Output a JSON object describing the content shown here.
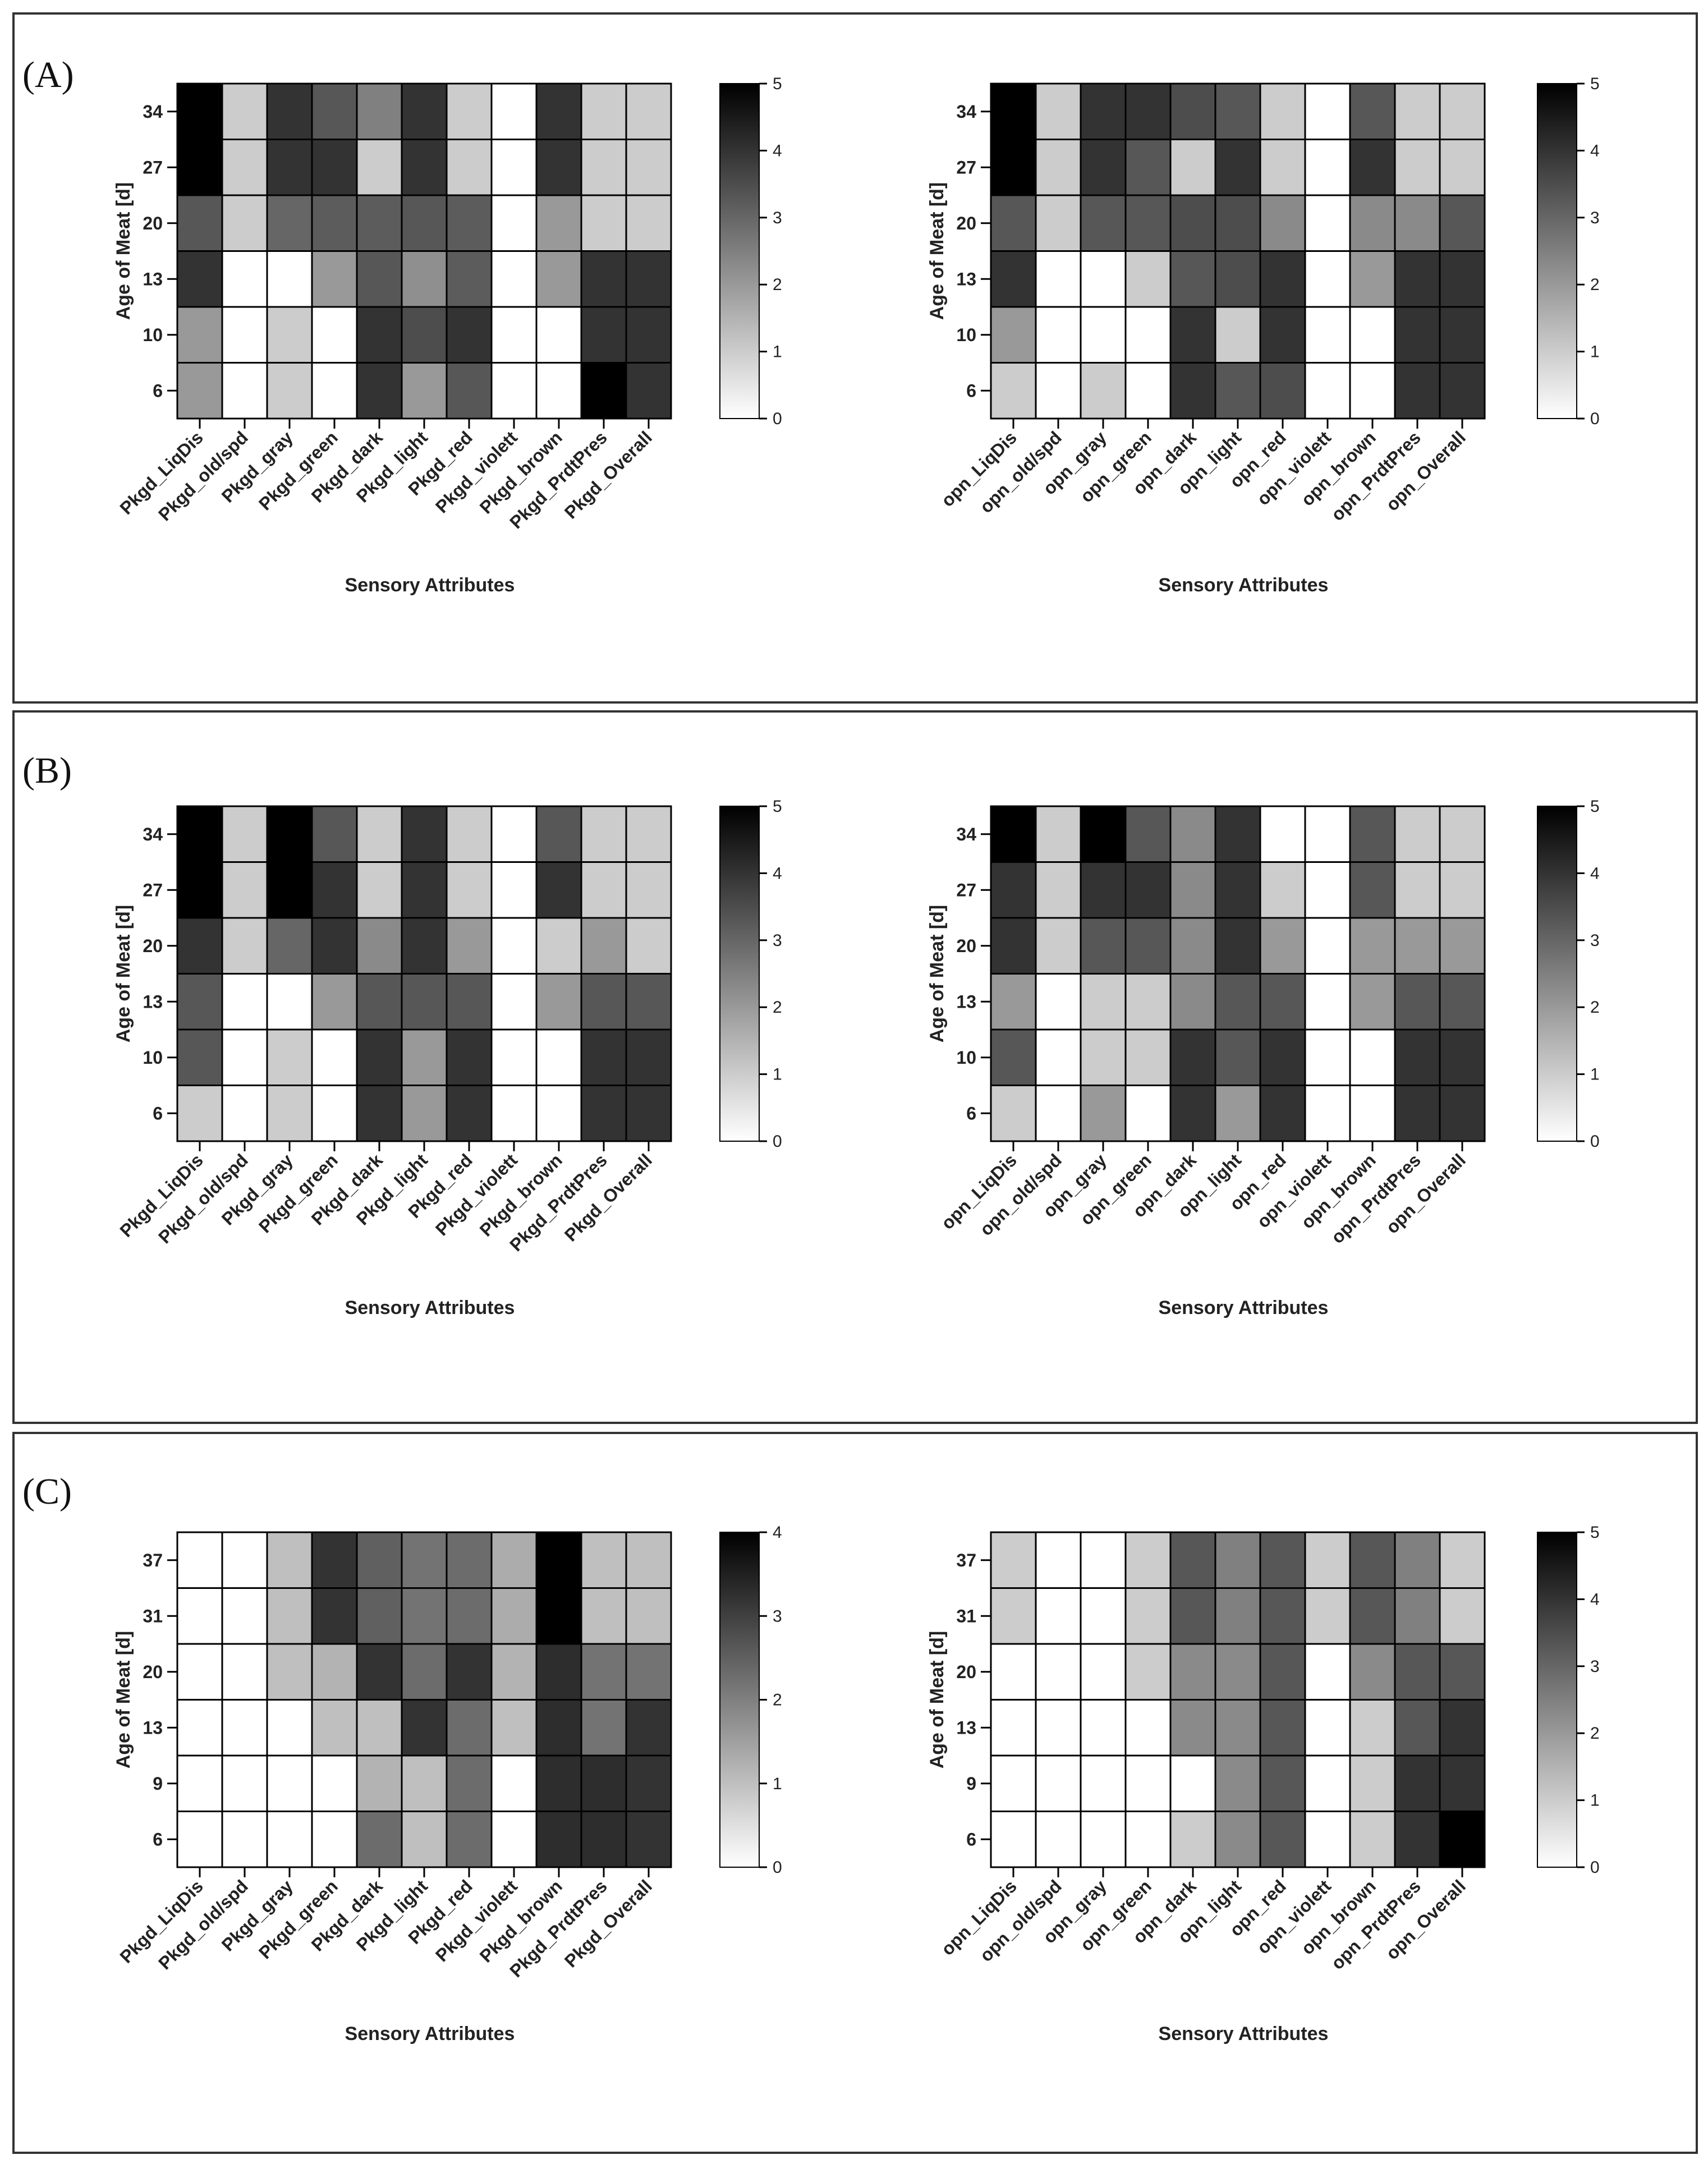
{
  "panels": [
    {
      "letter": "(A)"
    },
    {
      "letter": "(B)"
    },
    {
      "letter": "(C)"
    }
  ],
  "chart_data": [
    {
      "panel": "(A)",
      "type": "heatmap",
      "xlabel": "Sensory Attributes",
      "ylabel": "Age of Meat [d]",
      "x": [
        "Pkgd_LiqDis",
        "Pkgd_old/spd",
        "Pkgd_gray",
        "Pkgd_green",
        "Pkgd_dark",
        "Pkgd_light",
        "Pkgd_red",
        "Pkgd_violett",
        "Pkgd_brown",
        "Pkgd_PrdtPres",
        "Pkgd_Overall"
      ],
      "y": [
        "34",
        "27",
        "20",
        "13",
        "10",
        "6"
      ],
      "values": [
        [
          5,
          1,
          4,
          3.3,
          2.5,
          4,
          1,
          0,
          4,
          1,
          1
        ],
        [
          5,
          1,
          4,
          4,
          1,
          4,
          1,
          0,
          4,
          1,
          1
        ],
        [
          3.3,
          1,
          3,
          3.2,
          3.2,
          3.3,
          3.2,
          0,
          2,
          1,
          1
        ],
        [
          4,
          0,
          0,
          2,
          3.3,
          2.2,
          3.2,
          0,
          2,
          4,
          4
        ],
        [
          2,
          0,
          1,
          0,
          4,
          3.5,
          4,
          0,
          0,
          4,
          4
        ],
        [
          2,
          0,
          1,
          0,
          4,
          2,
          3.3,
          0,
          0,
          5,
          4
        ]
      ],
      "colorbar": {
        "min": 0,
        "max": 5,
        "ticks": [
          0,
          1,
          2,
          3,
          4,
          5
        ]
      }
    },
    {
      "panel": "(A)",
      "type": "heatmap",
      "xlabel": "Sensory Attributes",
      "ylabel": "Age of Meat [d]",
      "x": [
        "opn_LiqDis",
        "opn_old/spd",
        "opn_gray",
        "opn_green",
        "opn_dark",
        "opn_light",
        "opn_red",
        "opn_violett",
        "opn_brown",
        "opn_PrdtPres",
        "opn_Overall"
      ],
      "y": [
        "34",
        "27",
        "20",
        "13",
        "10",
        "6"
      ],
      "values": [
        [
          5,
          1,
          4,
          4,
          3.5,
          3.3,
          1,
          0,
          3.3,
          1,
          1
        ],
        [
          5,
          1,
          4,
          3.3,
          1,
          4,
          1,
          0,
          4,
          1,
          1
        ],
        [
          3.3,
          1,
          3.3,
          3.3,
          3.5,
          3.5,
          2.3,
          0,
          2.3,
          2.3,
          3.3
        ],
        [
          4,
          0,
          0,
          1,
          3.3,
          3.5,
          4,
          0,
          2,
          4,
          4
        ],
        [
          2,
          0,
          0,
          0,
          4,
          1,
          4,
          0,
          0,
          4,
          4
        ],
        [
          1,
          0,
          1,
          0,
          4,
          3.3,
          3.5,
          0,
          0,
          4,
          4
        ]
      ],
      "colorbar": {
        "min": 0,
        "max": 5,
        "ticks": [
          0,
          1,
          2,
          3,
          4,
          5
        ]
      }
    },
    {
      "panel": "(B)",
      "type": "heatmap",
      "xlabel": "Sensory Attributes",
      "ylabel": "Age of Meat [d]",
      "x": [
        "Pkgd_LiqDis",
        "Pkgd_old/spd",
        "Pkgd_gray",
        "Pkgd_green",
        "Pkgd_dark",
        "Pkgd_light",
        "Pkgd_red",
        "Pkgd_violett",
        "Pkgd_brown",
        "Pkgd_PrdtPres",
        "Pkgd_Overall"
      ],
      "y": [
        "34",
        "27",
        "20",
        "13",
        "10",
        "6"
      ],
      "values": [
        [
          5,
          1,
          5,
          3.3,
          1,
          4,
          1,
          0,
          3.3,
          1,
          1
        ],
        [
          5,
          1,
          5,
          4,
          1,
          4,
          1,
          0,
          4,
          1,
          1
        ],
        [
          4,
          1,
          3,
          4,
          2.3,
          4,
          2,
          0,
          1,
          2,
          1
        ],
        [
          3.3,
          0,
          0,
          2,
          3.3,
          3.3,
          3.3,
          0,
          2,
          3.3,
          3.3
        ],
        [
          3.3,
          0,
          1,
          0,
          4,
          2,
          4,
          0,
          0,
          4,
          4
        ],
        [
          1,
          0,
          1,
          0,
          4,
          2,
          4,
          0,
          0,
          4,
          4
        ]
      ],
      "colorbar": {
        "min": 0,
        "max": 5,
        "ticks": [
          0,
          1,
          2,
          3,
          4,
          5
        ]
      }
    },
    {
      "panel": "(B)",
      "type": "heatmap",
      "xlabel": "Sensory Attributes",
      "ylabel": "Age of Meat [d]",
      "x": [
        "opn_LiqDis",
        "opn_old/spd",
        "opn_gray",
        "opn_green",
        "opn_dark",
        "opn_light",
        "opn_red",
        "opn_violett",
        "opn_brown",
        "opn_PrdtPres",
        "opn_Overall"
      ],
      "y": [
        "34",
        "27",
        "20",
        "13",
        "10",
        "6"
      ],
      "values": [
        [
          5,
          1,
          5,
          3.3,
          2.3,
          4,
          0,
          0,
          3.3,
          1,
          1
        ],
        [
          4,
          1,
          4,
          4,
          2.3,
          4,
          1,
          0,
          3.3,
          1,
          1
        ],
        [
          4,
          1,
          3.3,
          3.3,
          2.3,
          4,
          2,
          0,
          2,
          2,
          2
        ],
        [
          2,
          0,
          1,
          1,
          2.3,
          3.3,
          3.3,
          0,
          2,
          3.3,
          3.3
        ],
        [
          3.3,
          0,
          1,
          1,
          4,
          3.3,
          4,
          0,
          0,
          4,
          4
        ],
        [
          1,
          0,
          2,
          0,
          4,
          2,
          4,
          0,
          0,
          4,
          4
        ]
      ],
      "colorbar": {
        "min": 0,
        "max": 5,
        "ticks": [
          0,
          1,
          2,
          3,
          4,
          5
        ]
      }
    },
    {
      "panel": "(C)",
      "type": "heatmap",
      "xlabel": "Sensory Attributes",
      "ylabel": "Age of Meat [d]",
      "x": [
        "Pkgd_LiqDis",
        "Pkgd_old/spd",
        "Pkgd_gray",
        "Pkgd_green",
        "Pkgd_dark",
        "Pkgd_light",
        "Pkgd_red",
        "Pkgd_violett",
        "Pkgd_brown",
        "Pkgd_PrdtPres",
        "Pkgd_Overall"
      ],
      "y": [
        "37",
        "31",
        "20",
        "13",
        "9",
        "6"
      ],
      "values": [
        [
          0,
          0,
          1,
          3.2,
          2.5,
          2.2,
          2.3,
          1.3,
          4,
          1,
          1
        ],
        [
          0,
          0,
          1,
          3.2,
          2.5,
          2.2,
          2.3,
          1.3,
          4,
          1,
          1
        ],
        [
          0,
          0,
          1,
          1.2,
          3.2,
          2.3,
          3.2,
          1.2,
          3.3,
          2.2,
          2.2
        ],
        [
          0,
          0,
          0,
          1,
          1,
          3.2,
          2.3,
          1,
          3.3,
          2.2,
          3.2
        ],
        [
          0,
          0,
          0,
          0,
          1.2,
          1,
          2.3,
          0,
          3.3,
          3.3,
          3.2
        ],
        [
          0,
          0,
          0,
          0,
          2.3,
          1,
          2.3,
          0,
          3.3,
          3.3,
          3.2
        ]
      ],
      "colorbar": {
        "min": 0,
        "max": 4,
        "ticks": [
          0,
          1,
          2,
          3,
          4
        ]
      }
    },
    {
      "panel": "(C)",
      "type": "heatmap",
      "xlabel": "Sensory Attributes",
      "ylabel": "Age of Meat [d]",
      "x": [
        "opn_LiqDis",
        "opn_old/spd",
        "opn_gray",
        "opn_green",
        "opn_dark",
        "opn_light",
        "opn_red",
        "opn_violett",
        "opn_brown",
        "opn_PrdtPres",
        "opn_Overall"
      ],
      "y": [
        "37",
        "31",
        "20",
        "13",
        "9",
        "6"
      ],
      "values": [
        [
          1,
          0,
          0,
          1,
          3.3,
          2.5,
          3.3,
          1,
          3.3,
          2.5,
          1
        ],
        [
          1,
          0,
          0,
          1,
          3.3,
          2.5,
          3.3,
          1,
          3.3,
          2.5,
          1
        ],
        [
          0,
          0,
          0,
          1,
          2.3,
          2.3,
          3.3,
          0,
          2.3,
          3.3,
          3.3
        ],
        [
          0,
          0,
          0,
          0,
          2.3,
          2.3,
          3.3,
          0,
          1,
          3.3,
          4
        ],
        [
          0,
          0,
          0,
          0,
          0,
          2.3,
          3.3,
          0,
          1,
          4,
          4
        ],
        [
          0,
          0,
          0,
          0,
          1,
          2.3,
          3.3,
          0,
          1,
          4,
          5
        ]
      ],
      "colorbar": {
        "min": 0,
        "max": 5,
        "ticks": [
          0,
          1,
          2,
          3,
          4,
          5
        ]
      }
    }
  ]
}
